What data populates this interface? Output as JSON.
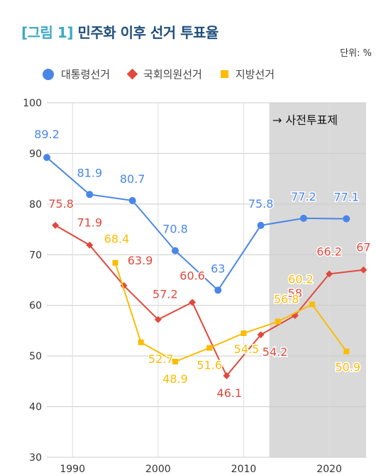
{
  "header": {
    "figure_label": "[그림 1]",
    "title": "민주화 이후 선거 투표율",
    "unit": "단위: %"
  },
  "chart_data": {
    "type": "line",
    "y_range": [
      30,
      100
    ],
    "x_range": [
      1987,
      2024.3
    ],
    "y_ticks": [
      30,
      40,
      50,
      60,
      70,
      80,
      90,
      100
    ],
    "x_ticks": [
      1990,
      2000,
      2010,
      2020
    ],
    "grid": "horizontal",
    "legend_position": "top",
    "shaded_region": {
      "x_from": 2013,
      "x_to": 2024.3,
      "label": "→ 사전투표제"
    },
    "series": [
      {
        "name": "대통령선거",
        "marker": "circle",
        "color": "#4a86e8",
        "points": [
          [
            1987,
            89.2
          ],
          [
            1992,
            81.9
          ],
          [
            1997,
            80.7
          ],
          [
            2002,
            70.8
          ],
          [
            2007,
            63
          ],
          [
            2012,
            75.8
          ],
          [
            2017,
            77.2
          ],
          [
            2022,
            77.1
          ]
        ],
        "labels": [
          "89.2",
          "81.9",
          "80.7",
          "70.8",
          "63",
          "75.8",
          "77.2",
          "77.1"
        ]
      },
      {
        "name": "국회의원선거",
        "marker": "diamond",
        "color": "#e0493d",
        "points": [
          [
            1988,
            75.8
          ],
          [
            1992,
            71.9
          ],
          [
            1996,
            63.9
          ],
          [
            2000,
            57.2
          ],
          [
            2004,
            60.6
          ],
          [
            2008,
            46.1
          ],
          [
            2012,
            54.2
          ],
          [
            2016,
            58
          ],
          [
            2020,
            66.2
          ],
          [
            2024,
            67
          ]
        ],
        "labels": [
          "75.8",
          "71.9",
          "63.9",
          "57.2",
          "60.6",
          "46.1",
          "54.2",
          "58",
          "66.2",
          "67"
        ]
      },
      {
        "name": "지방선거",
        "marker": "square",
        "color": "#fbbc04",
        "points": [
          [
            1995,
            68.4
          ],
          [
            1998,
            52.7
          ],
          [
            2002,
            48.9
          ],
          [
            2006,
            51.6
          ],
          [
            2010,
            54.5
          ],
          [
            2014,
            56.8
          ],
          [
            2018,
            60.2
          ],
          [
            2022,
            50.9
          ]
        ],
        "labels": [
          "68.4",
          "52.7",
          "48.9",
          "51.6",
          "54.5",
          "56.8",
          "60.2",
          "50.9"
        ]
      }
    ]
  }
}
